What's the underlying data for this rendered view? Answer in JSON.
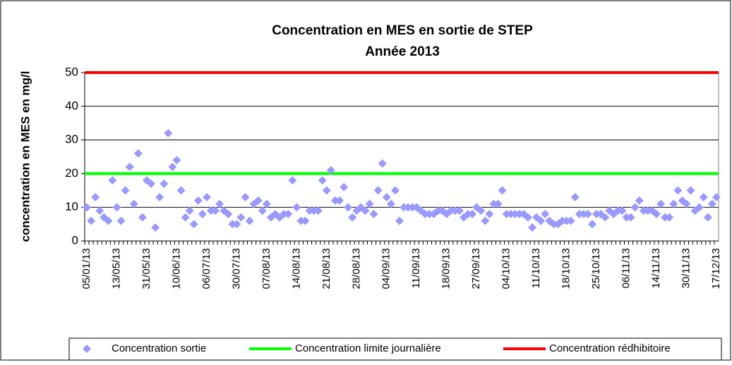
{
  "chart_data": {
    "type": "scatter",
    "title": "Concentration en MES en sortie de STEP",
    "subtitle": "Année 2013",
    "y_label": "concentration en MES en mg/l",
    "categories": [
      "05/01/13",
      null,
      null,
      null,
      null,
      null,
      null,
      "13/05/13",
      null,
      null,
      null,
      null,
      null,
      null,
      "31/05/13",
      null,
      null,
      null,
      null,
      null,
      null,
      "10/06/13",
      null,
      null,
      null,
      null,
      null,
      null,
      "06/07/13",
      null,
      null,
      null,
      null,
      null,
      null,
      "30/07/13",
      null,
      null,
      null,
      null,
      null,
      null,
      "07/08/13",
      null,
      null,
      null,
      null,
      null,
      null,
      "14/08/13",
      null,
      null,
      null,
      null,
      null,
      null,
      "21/08/13",
      null,
      null,
      null,
      null,
      null,
      null,
      "28/08/13",
      null,
      null,
      null,
      null,
      null,
      null,
      "04/09/13",
      null,
      null,
      null,
      null,
      null,
      null,
      "11/09/13",
      null,
      null,
      null,
      null,
      null,
      null,
      "18/09/13",
      null,
      null,
      null,
      null,
      null,
      null,
      "27/09/13",
      null,
      null,
      null,
      null,
      null,
      null,
      "04/10/13",
      null,
      null,
      null,
      null,
      null,
      null,
      "11/10/13",
      null,
      null,
      null,
      null,
      null,
      null,
      "18/10/13",
      null,
      null,
      null,
      null,
      null,
      null,
      "25/10/13",
      null,
      null,
      null,
      null,
      null,
      null,
      "06/11/13",
      null,
      null,
      null,
      null,
      null,
      null,
      "14/11/13",
      null,
      null,
      null,
      null,
      null,
      null,
      "30/11/13",
      null,
      null,
      null,
      null,
      null,
      null,
      "17/12/13"
    ],
    "series": [
      {
        "name": "Concentration sortie",
        "color": "#9999ff",
        "values": [
          10,
          6,
          13,
          9,
          7,
          6,
          18,
          10,
          6,
          15,
          22,
          11,
          26,
          7,
          18,
          17,
          4,
          13,
          17,
          32,
          22,
          24,
          15,
          7,
          9,
          5,
          12,
          8,
          13,
          9,
          9,
          11,
          9,
          8,
          5,
          5,
          7,
          13,
          6,
          11,
          12,
          9,
          11,
          7,
          8,
          7,
          8,
          8,
          18,
          10,
          6,
          6,
          9,
          9,
          9,
          18,
          15,
          21,
          12,
          12,
          16,
          10,
          7,
          9,
          10,
          9,
          11,
          8,
          15,
          23,
          13,
          11,
          15,
          6,
          10,
          10,
          10,
          10,
          9,
          8,
          8,
          8,
          9,
          9,
          8,
          9,
          9,
          9,
          7,
          8,
          8,
          10,
          9,
          6,
          8,
          11,
          11,
          15,
          8,
          8,
          8,
          8,
          8,
          7,
          4,
          7,
          6,
          8,
          6,
          5,
          5,
          6,
          6,
          6,
          13,
          8,
          8,
          8,
          5,
          8,
          8,
          7,
          9,
          8,
          9,
          9,
          7,
          7,
          10,
          12,
          9,
          9,
          9,
          8,
          11,
          7,
          7,
          11,
          15,
          12,
          11,
          15,
          9,
          10,
          13,
          7,
          11,
          13
        ]
      }
    ],
    "reference_lines": [
      {
        "name": "Concentration limite journalière",
        "color": "#00ff00",
        "value": 20
      },
      {
        "name": "Concentration rédhibitoire",
        "color": "#ff0000",
        "value": 50
      }
    ],
    "ylim": [
      0,
      50
    ],
    "yticks": [
      0,
      10,
      20,
      30,
      40,
      50
    ],
    "grid": true,
    "legend": "bottom"
  }
}
